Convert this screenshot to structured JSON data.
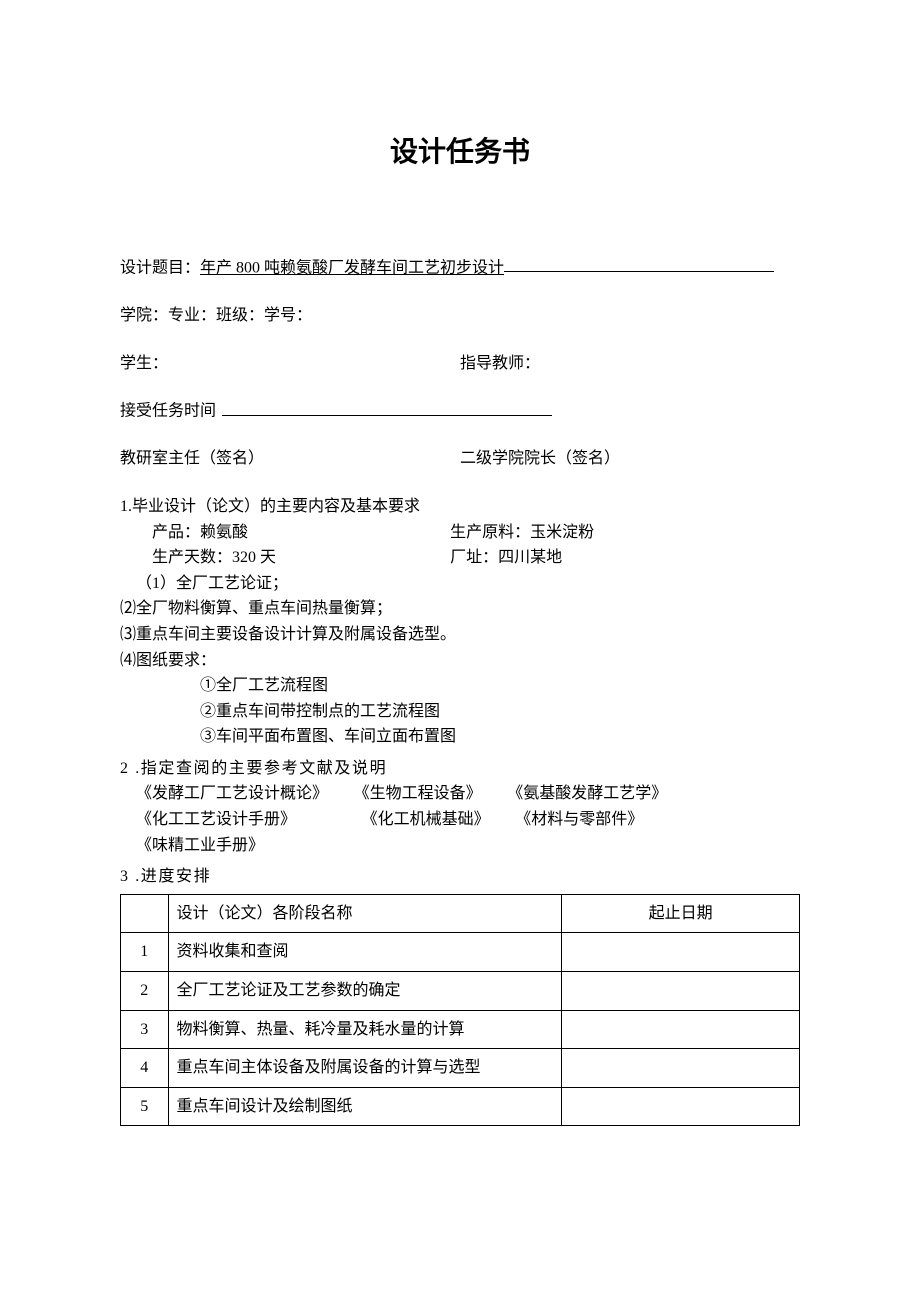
{
  "title": "设计任务书",
  "topic": {
    "label": "设计题目：",
    "value": "年产 800 吨赖氨酸厂发酵车间工艺初步设计"
  },
  "info_line": "学院：专业：班级：学号：",
  "student": {
    "label": "学生：",
    "teacher_label": "指导教师："
  },
  "accept_time_label": "接受任务时间",
  "dept_head_label": "教研室主任（签名）",
  "dean_label": "二级学院院长（签名）",
  "section1": {
    "header": "1.毕业设计（论文）的主要内容及基本要求",
    "product_label": "产品：赖氨酸",
    "material_label": "生产原料：玉米淀粉",
    "days_label": "生产天数：320 天",
    "location_label": "厂址：四川某地",
    "item1": "（1）全厂工艺论证；",
    "item2": "⑵全厂物料衡算、重点车间热量衡算；",
    "item3": "⑶重点车间主要设备设计计算及附属设备选型。",
    "item4": "⑷图纸要求：",
    "sub1": "①全厂工艺流程图",
    "sub2": "②重点车间带控制点的工艺流程图",
    "sub3": "③车间平面布置图、车间立面布置图"
  },
  "section2": {
    "header": "2  .指定查阅的主要参考文献及说明",
    "refs": [
      [
        "《发酵工厂工艺设计概论》",
        "《生物工程设备》",
        "《氨基酸发酵工艺学》"
      ],
      [
        "《化工工艺设计手册》",
        "《化工机械基础》",
        "《材料与零部件》"
      ],
      [
        "《味精工业手册》"
      ]
    ]
  },
  "section3": {
    "header": "3  .进度安排",
    "table": {
      "columns": [
        "",
        "设计（论文）各阶段名称",
        "起止日期"
      ],
      "rows": [
        [
          "1",
          "资料收集和查阅",
          ""
        ],
        [
          "2",
          "全厂工艺论证及工艺参数的确定",
          ""
        ],
        [
          "3",
          "物料衡算、热量、耗冷量及耗水量的计算",
          ""
        ],
        [
          "4",
          "重点车间主体设备及附属设备的计算与选型",
          ""
        ],
        [
          "5",
          "重点车间设计及绘制图纸",
          ""
        ]
      ]
    }
  },
  "colors": {
    "text": "#000000",
    "background": "#ffffff",
    "border": "#000000"
  }
}
